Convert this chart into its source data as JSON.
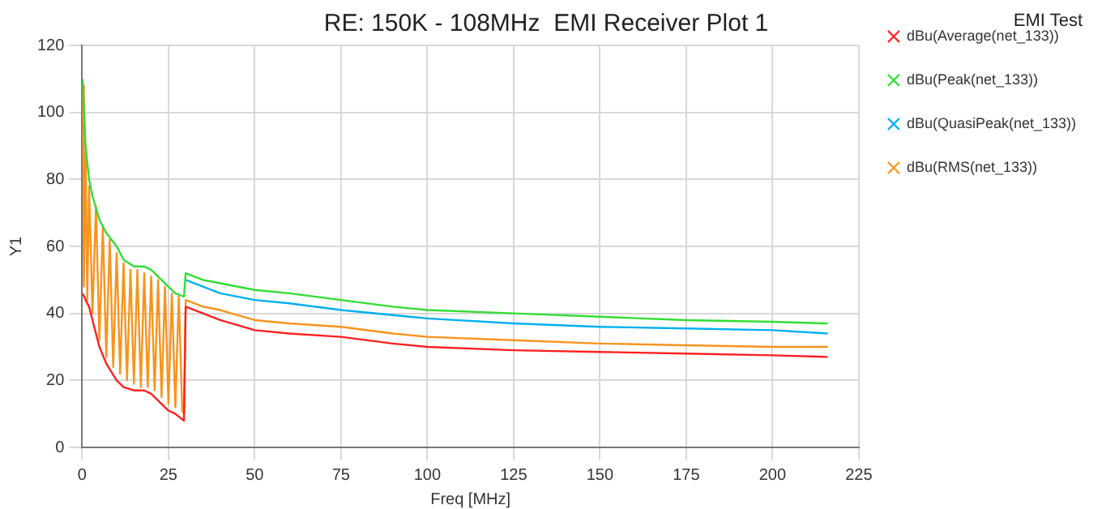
{
  "chart_data": {
    "type": "line",
    "title": "RE: 150K - 108MHz  EMI Receiver Plot 1",
    "annotations": [
      "EMI Test"
    ],
    "xlabel": "Freq [MHz]",
    "ylabel": "Y1",
    "xlim": [
      0,
      225
    ],
    "xticks": [
      0,
      25,
      50,
      75,
      100,
      125,
      150,
      175,
      200,
      225
    ],
    "ylim": [
      0,
      120
    ],
    "yticks": [
      0,
      20,
      40,
      60,
      80,
      100,
      120
    ],
    "grid": true,
    "legend": "top right",
    "series": [
      {
        "name": "dBu(Average(net_133))",
        "color": "#ff2020",
        "x": [
          0.15,
          1,
          2,
          3,
          5,
          7,
          10,
          12,
          15,
          18,
          20,
          23,
          25,
          27,
          29.5,
          30,
          35,
          40,
          50,
          60,
          75,
          90,
          100,
          125,
          150,
          175,
          200,
          216
        ],
        "values": [
          46,
          44,
          42,
          38,
          30,
          25,
          20,
          18,
          17,
          17,
          16,
          13,
          11,
          10,
          8,
          42,
          40,
          38,
          35,
          34,
          33,
          31,
          30,
          29,
          28.5,
          28,
          27.5,
          27
        ]
      },
      {
        "name": "dBu(Peak(net_133))",
        "color": "#33dd33",
        "x": [
          0.15,
          1,
          2,
          3,
          5,
          7,
          10,
          12,
          15,
          18,
          20,
          23,
          25,
          27,
          29.5,
          30,
          35,
          40,
          50,
          60,
          75,
          90,
          100,
          125,
          150,
          175,
          200,
          216
        ],
        "values": [
          110,
          90,
          80,
          75,
          68,
          64,
          60,
          56,
          54,
          54,
          53,
          50,
          48,
          46,
          45,
          52,
          50,
          49,
          47,
          46,
          44,
          42,
          41,
          40,
          39,
          38,
          37.5,
          37
        ]
      },
      {
        "name": "dBu(QuasiPeak(net_133))",
        "color": "#00b0f0",
        "x": [
          30,
          35,
          40,
          50,
          60,
          75,
          90,
          100,
          125,
          150,
          175,
          200,
          216
        ],
        "values": [
          50,
          48,
          46,
          44,
          43,
          41,
          39.5,
          38.5,
          37,
          36,
          35.5,
          35,
          34
        ]
      },
      {
        "name": "dBu(RMS(net_133))",
        "color": "#f7941d",
        "x": [
          0.15,
          0.5,
          1,
          1.5,
          2,
          3,
          4,
          5,
          6,
          7,
          8,
          9,
          10,
          11,
          12,
          13,
          14,
          15,
          16,
          17,
          18,
          19,
          20,
          21,
          22,
          23,
          24,
          25,
          26,
          27,
          28,
          29,
          29.5,
          30,
          35,
          40,
          50,
          60,
          75,
          90,
          100,
          125,
          150,
          175,
          200,
          216
        ],
        "values": [
          108,
          48,
          88,
          44,
          78,
          40,
          72,
          32,
          66,
          27,
          62,
          24,
          58,
          22,
          55,
          20,
          53,
          19,
          53,
          18,
          52,
          18,
          51,
          17,
          50,
          15,
          48,
          13,
          46,
          12,
          45,
          11,
          10,
          44,
          42,
          41,
          38,
          37,
          36,
          34,
          33,
          32,
          31,
          30.5,
          30,
          30
        ]
      }
    ]
  }
}
